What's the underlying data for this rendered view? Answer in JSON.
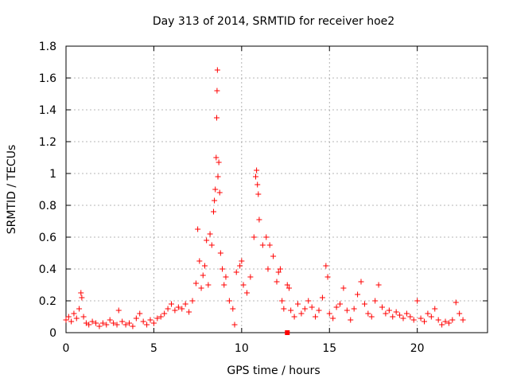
{
  "chart_data": {
    "type": "scatter",
    "title": "Day 313 of 2014, SRMTID for receiver hoe2",
    "xlabel": "GPS time / hours",
    "ylabel": "SRMTID / TECUs",
    "xlim": [
      0,
      24
    ],
    "ylim": [
      0,
      1.8
    ],
    "xticks": [
      0,
      5,
      10,
      15,
      20
    ],
    "yticks": [
      0,
      0.2,
      0.4,
      0.6,
      0.8,
      1,
      1.2,
      1.4,
      1.6,
      1.8
    ],
    "xtick_labels": [
      "0",
      "5",
      "10",
      "15",
      "20"
    ],
    "ytick_labels": [
      "0",
      "0.2",
      "0.4",
      "0.6",
      "0.8",
      "1",
      "1.2",
      "1.4",
      "1.6",
      "1.8"
    ],
    "grid": true,
    "marker": "plus",
    "color": "#ff0000",
    "series": [
      {
        "name": "SRMTID",
        "points": [
          [
            0.0,
            0.08
          ],
          [
            0.15,
            0.1
          ],
          [
            0.3,
            0.07
          ],
          [
            0.45,
            0.12
          ],
          [
            0.6,
            0.09
          ],
          [
            0.75,
            0.15
          ],
          [
            0.85,
            0.25
          ],
          [
            0.9,
            0.22
          ],
          [
            1.0,
            0.1
          ],
          [
            1.15,
            0.06
          ],
          [
            1.3,
            0.05
          ],
          [
            1.5,
            0.07
          ],
          [
            1.7,
            0.06
          ],
          [
            1.9,
            0.04
          ],
          [
            2.1,
            0.06
          ],
          [
            2.3,
            0.05
          ],
          [
            2.5,
            0.08
          ],
          [
            2.7,
            0.06
          ],
          [
            2.9,
            0.05
          ],
          [
            3.0,
            0.14
          ],
          [
            3.2,
            0.07
          ],
          [
            3.4,
            0.05
          ],
          [
            3.6,
            0.06
          ],
          [
            3.8,
            0.04
          ],
          [
            4.0,
            0.09
          ],
          [
            4.2,
            0.12
          ],
          [
            4.4,
            0.07
          ],
          [
            4.6,
            0.05
          ],
          [
            4.8,
            0.08
          ],
          [
            5.0,
            0.06
          ],
          [
            5.2,
            0.09
          ],
          [
            5.4,
            0.1
          ],
          [
            5.6,
            0.12
          ],
          [
            5.8,
            0.15
          ],
          [
            6.0,
            0.18
          ],
          [
            6.2,
            0.14
          ],
          [
            6.4,
            0.16
          ],
          [
            6.6,
            0.15
          ],
          [
            6.8,
            0.18
          ],
          [
            7.0,
            0.13
          ],
          [
            7.2,
            0.2
          ],
          [
            7.4,
            0.31
          ],
          [
            7.5,
            0.65
          ],
          [
            7.6,
            0.45
          ],
          [
            7.7,
            0.28
          ],
          [
            7.8,
            0.36
          ],
          [
            7.9,
            0.42
          ],
          [
            8.0,
            0.58
          ],
          [
            8.1,
            0.3
          ],
          [
            8.2,
            0.62
          ],
          [
            8.3,
            0.55
          ],
          [
            8.4,
            0.76
          ],
          [
            8.45,
            0.83
          ],
          [
            8.5,
            0.9
          ],
          [
            8.55,
            1.1
          ],
          [
            8.58,
            1.35
          ],
          [
            8.6,
            1.52
          ],
          [
            8.62,
            1.65
          ],
          [
            8.65,
            0.98
          ],
          [
            8.7,
            1.07
          ],
          [
            8.75,
            0.88
          ],
          [
            8.8,
            0.5
          ],
          [
            8.9,
            0.4
          ],
          [
            9.0,
            0.3
          ],
          [
            9.1,
            0.35
          ],
          [
            9.3,
            0.2
          ],
          [
            9.5,
            0.15
          ],
          [
            9.6,
            0.05
          ],
          [
            9.7,
            0.38
          ],
          [
            9.9,
            0.42
          ],
          [
            10.0,
            0.45
          ],
          [
            10.1,
            0.3
          ],
          [
            10.3,
            0.25
          ],
          [
            10.5,
            0.35
          ],
          [
            10.7,
            0.6
          ],
          [
            10.8,
            0.98
          ],
          [
            10.85,
            1.02
          ],
          [
            10.9,
            0.93
          ],
          [
            10.95,
            0.87
          ],
          [
            11.0,
            0.71
          ],
          [
            11.2,
            0.55
          ],
          [
            11.4,
            0.6
          ],
          [
            11.5,
            0.4
          ],
          [
            11.6,
            0.55
          ],
          [
            11.8,
            0.48
          ],
          [
            12.0,
            0.32
          ],
          [
            12.1,
            0.38
          ],
          [
            12.2,
            0.4
          ],
          [
            12.3,
            0.2
          ],
          [
            12.4,
            0.15
          ],
          [
            12.6,
            0.3
          ],
          [
            12.7,
            0.28
          ],
          [
            12.8,
            0.14
          ],
          [
            13.0,
            0.1
          ],
          [
            13.2,
            0.18
          ],
          [
            13.4,
            0.12
          ],
          [
            13.6,
            0.15
          ],
          [
            13.8,
            0.2
          ],
          [
            14.0,
            0.16
          ],
          [
            14.2,
            0.1
          ],
          [
            14.4,
            0.14
          ],
          [
            14.6,
            0.22
          ],
          [
            14.8,
            0.42
          ],
          [
            14.9,
            0.35
          ],
          [
            15.0,
            0.12
          ],
          [
            15.2,
            0.09
          ],
          [
            15.4,
            0.16
          ],
          [
            15.6,
            0.18
          ],
          [
            15.8,
            0.28
          ],
          [
            16.0,
            0.14
          ],
          [
            16.2,
            0.08
          ],
          [
            16.4,
            0.15
          ],
          [
            16.6,
            0.24
          ],
          [
            16.8,
            0.32
          ],
          [
            17.0,
            0.18
          ],
          [
            17.2,
            0.12
          ],
          [
            17.4,
            0.1
          ],
          [
            17.6,
            0.2
          ],
          [
            17.8,
            0.3
          ],
          [
            18.0,
            0.16
          ],
          [
            18.2,
            0.12
          ],
          [
            18.4,
            0.14
          ],
          [
            18.6,
            0.1
          ],
          [
            18.8,
            0.13
          ],
          [
            19.0,
            0.11
          ],
          [
            19.2,
            0.09
          ],
          [
            19.4,
            0.12
          ],
          [
            19.6,
            0.1
          ],
          [
            19.8,
            0.08
          ],
          [
            20.0,
            0.2
          ],
          [
            20.2,
            0.09
          ],
          [
            20.4,
            0.07
          ],
          [
            20.6,
            0.12
          ],
          [
            20.8,
            0.1
          ],
          [
            21.0,
            0.15
          ],
          [
            21.2,
            0.08
          ],
          [
            21.4,
            0.05
          ],
          [
            21.6,
            0.07
          ],
          [
            21.8,
            0.06
          ],
          [
            22.0,
            0.08
          ],
          [
            22.2,
            0.19
          ],
          [
            22.4,
            0.12
          ],
          [
            22.6,
            0.08
          ]
        ]
      }
    ],
    "special_marker": {
      "label": "square",
      "x": 12.6,
      "y": 0.0
    }
  }
}
